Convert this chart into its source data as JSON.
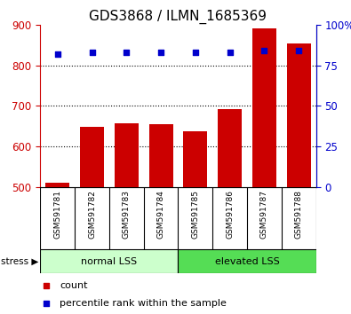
{
  "title": "GDS3868 / ILMN_1685369",
  "samples": [
    "GSM591781",
    "GSM591782",
    "GSM591783",
    "GSM591784",
    "GSM591785",
    "GSM591786",
    "GSM591787",
    "GSM591788"
  ],
  "bar_values": [
    510,
    648,
    658,
    655,
    638,
    692,
    893,
    855
  ],
  "percentile_values": [
    82,
    83,
    83,
    83,
    83,
    83,
    84,
    84
  ],
  "bar_color": "#cc0000",
  "marker_color": "#0000cc",
  "ylim_left": [
    500,
    900
  ],
  "ylim_right": [
    0,
    100
  ],
  "yticks_left": [
    500,
    600,
    700,
    800,
    900
  ],
  "ytick_labels_right": [
    "0",
    "25",
    "50",
    "75",
    "100%"
  ],
  "yticks_right": [
    0,
    25,
    50,
    75,
    100
  ],
  "groups": [
    {
      "label": "normal LSS",
      "start": 0,
      "end": 3,
      "color": "#ccffcc"
    },
    {
      "label": "elevated LSS",
      "start": 4,
      "end": 7,
      "color": "#55dd55"
    }
  ],
  "stress_label": "stress",
  "legend_count_label": "count",
  "legend_pct_label": "percentile rank within the sample",
  "bg_gray": "#d0d0d0",
  "plot_bg": "#ffffff",
  "title_fontsize": 11,
  "tick_fontsize": 8.5,
  "bar_bottom": 500
}
